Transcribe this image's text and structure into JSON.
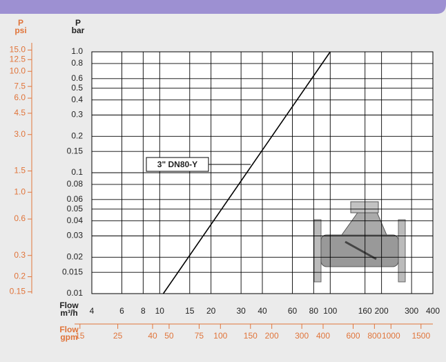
{
  "chart_data": {
    "type": "line",
    "log_x": true,
    "log_y": true,
    "grid": true,
    "ylabel": [
      "P",
      "bar"
    ],
    "y2label": [
      "P",
      "psi"
    ],
    "xlabel": [
      "Flow",
      "m³/h"
    ],
    "x2label": [
      "Flow",
      "gpm"
    ],
    "secondary_color": "#e0743a",
    "x": [
      10.5,
      100
    ],
    "series": [
      {
        "name": "3\" DN80-Y",
        "color": "#000000",
        "values": [
          0.01,
          1
        ]
      }
    ],
    "xlim": [
      4,
      400
    ],
    "xticks": [
      4,
      6,
      8,
      10,
      15,
      20,
      30,
      40,
      60,
      80,
      100,
      160,
      200,
      300,
      400
    ],
    "x2lim": [
      17.61,
      1761
    ],
    "x2ticks": [
      15,
      25,
      40,
      50,
      75,
      100,
      150,
      200,
      300,
      400,
      600,
      800,
      1000,
      1500
    ],
    "ylim": [
      0.01,
      1
    ],
    "yticks": [
      {
        "value": 1,
        "label": "1.0"
      },
      0.8,
      0.6,
      0.5,
      0.4,
      0.3,
      0.2,
      0.15,
      0.1,
      0.08,
      0.06,
      0.05,
      0.04,
      0.03,
      0.02,
      0.015,
      0.01
    ],
    "y2lim": [
      0.145,
      14.5
    ],
    "y2ticks": [
      {
        "value": 15,
        "label": "15.0"
      },
      12.5,
      {
        "value": 10,
        "label": "10.0"
      },
      7.5,
      {
        "value": 6,
        "label": "6.0"
      },
      4.5,
      {
        "value": 3,
        "label": "3.0"
      },
      1.5,
      {
        "value": 1,
        "label": "1.0"
      },
      0.6,
      0.3,
      0.2,
      0.15
    ]
  }
}
